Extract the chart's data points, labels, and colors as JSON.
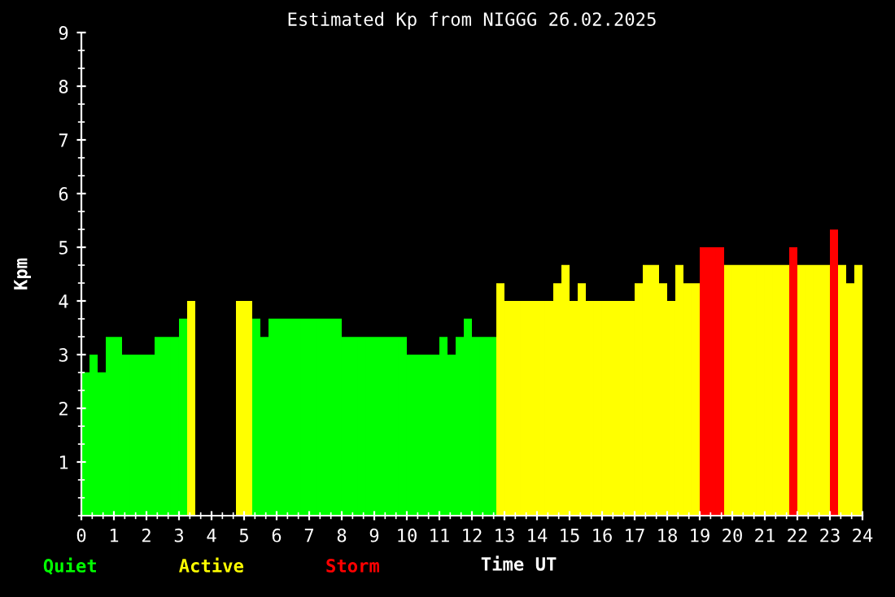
{
  "chart_data": {
    "type": "histogram",
    "title": "Estimated Kp from NIGGG 26.02.2025",
    "xlabel": "Time UT",
    "ylabel": "Kpm",
    "bins": [
      0,
      0.25,
      0.5,
      0.75,
      1,
      1.25,
      1.5,
      1.75,
      2,
      2.25,
      2.5,
      2.75,
      3,
      3.25,
      3.5,
      3.75,
      4,
      4.25,
      4.5,
      4.75,
      5,
      5.25,
      5.5,
      5.75,
      6,
      6.25,
      6.5,
      6.75,
      7,
      7.25,
      7.5,
      7.75,
      8,
      8.25,
      8.5,
      8.75,
      9,
      9.25,
      9.5,
      9.75,
      10,
      10.25,
      10.5,
      10.75,
      11,
      11.25,
      11.5,
      11.75,
      12,
      12.25,
      12.5,
      12.75,
      13,
      13.25,
      13.5,
      13.75,
      14,
      14.25,
      14.5,
      14.75,
      15,
      15.25,
      15.5,
      15.75,
      16,
      16.25,
      16.5,
      16.75,
      17,
      17.25,
      17.5,
      17.75,
      18,
      18.25,
      18.5,
      18.75,
      19,
      19.25,
      19.5,
      19.75,
      20,
      20.25,
      20.5,
      20.75,
      21,
      21.25,
      21.5,
      21.75,
      22,
      22.25,
      22.5,
      22.75,
      23,
      23.25,
      23.5,
      23.75,
      24
    ],
    "series": [
      {
        "name": "Quiet",
        "color": "#00ff00",
        "values": [
          2.67,
          3,
          2.67,
          3.33,
          3.33,
          3,
          3,
          3,
          3,
          3.33,
          3.33,
          3.33,
          3.67,
          null,
          null,
          null,
          null,
          null,
          null,
          null,
          null,
          3.67,
          3.33,
          3.67,
          3.67,
          3.67,
          3.67,
          3.67,
          3.67,
          3.67,
          3.67,
          3.67,
          3.33,
          3.33,
          3.33,
          3.33,
          3.33,
          3.33,
          3.33,
          3.33,
          3,
          3,
          3,
          3,
          3.33,
          3,
          3.33,
          3.67,
          3.33,
          3.33,
          3.33,
          null,
          null,
          null,
          null,
          null,
          null,
          null,
          null,
          null,
          null,
          null,
          null,
          null,
          null,
          null,
          null,
          null,
          null,
          null,
          null,
          null,
          null,
          null,
          null,
          null,
          null,
          null,
          null,
          null,
          null,
          null,
          null,
          null,
          null,
          null,
          null,
          null,
          null,
          null,
          null,
          null,
          null,
          null,
          null,
          null
        ]
      },
      {
        "name": "Active",
        "color": "#ffff00",
        "values": [
          null,
          null,
          null,
          null,
          null,
          null,
          null,
          null,
          null,
          null,
          null,
          null,
          null,
          4,
          null,
          null,
          null,
          null,
          null,
          4,
          4,
          null,
          null,
          null,
          null,
          null,
          null,
          null,
          null,
          null,
          null,
          null,
          null,
          null,
          null,
          null,
          null,
          null,
          null,
          null,
          null,
          null,
          null,
          null,
          null,
          null,
          null,
          null,
          null,
          null,
          null,
          4.33,
          4,
          4,
          4,
          4,
          4,
          4,
          4.33,
          4.67,
          4,
          4.33,
          4,
          4,
          4,
          4,
          4,
          4,
          4.33,
          4.67,
          4.67,
          4.33,
          4,
          4.67,
          4.33,
          4.33,
          null,
          null,
          null,
          4.67,
          4.67,
          4.67,
          4.67,
          4.67,
          4.67,
          4.67,
          4.67,
          null,
          4.67,
          4.67,
          4.67,
          4.67,
          null,
          4.67,
          4.33,
          4.67
        ]
      },
      {
        "name": "Storm",
        "color": "#ff0000",
        "values": [
          null,
          null,
          null,
          null,
          null,
          null,
          null,
          null,
          null,
          null,
          null,
          null,
          null,
          null,
          null,
          null,
          null,
          null,
          null,
          null,
          null,
          null,
          null,
          null,
          null,
          null,
          null,
          null,
          null,
          null,
          null,
          null,
          null,
          null,
          null,
          null,
          null,
          null,
          null,
          null,
          null,
          null,
          null,
          null,
          null,
          null,
          null,
          null,
          null,
          null,
          null,
          null,
          null,
          null,
          null,
          null,
          null,
          null,
          null,
          null,
          null,
          null,
          null,
          null,
          null,
          null,
          null,
          null,
          null,
          null,
          null,
          null,
          null,
          null,
          null,
          null,
          5,
          5,
          5,
          null,
          null,
          null,
          null,
          null,
          null,
          null,
          null,
          5,
          null,
          null,
          null,
          null,
          5.33,
          null,
          null,
          null
        ]
      }
    ],
    "xlim": [
      0,
      24
    ],
    "xticks": [
      0,
      1,
      2,
      3,
      4,
      5,
      6,
      7,
      8,
      9,
      10,
      11,
      12,
      13,
      14,
      15,
      16,
      17,
      18,
      19,
      20,
      21,
      22,
      23,
      24
    ],
    "ylim": [
      0,
      9
    ],
    "yticks": [
      1,
      2,
      3,
      4,
      5,
      6,
      7,
      8,
      9
    ],
    "grid": false,
    "legend": "bottom left"
  }
}
